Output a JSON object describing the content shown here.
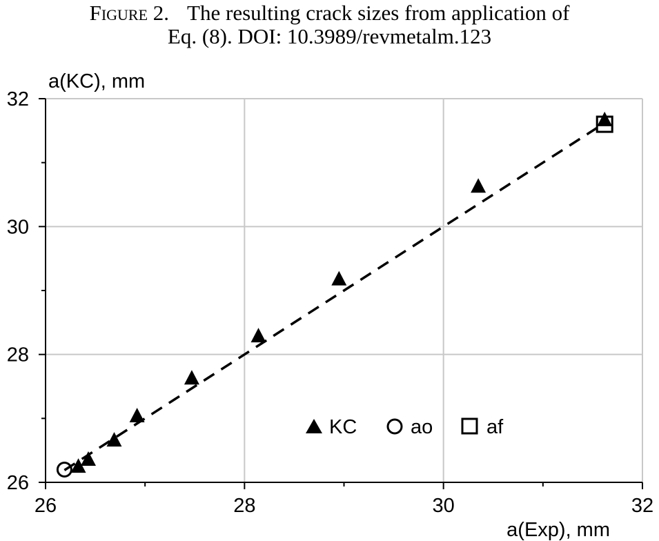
{
  "caption": {
    "figure_label": "Figure 2.",
    "line1": "The resulting crack sizes from application of",
    "line2": "Eq. (8). DOI: 10.3989/revmetalm.123"
  },
  "chart_data": {
    "type": "scatter",
    "title": "",
    "xlabel": "a(Exp), mm",
    "ylabel": "a(KC), mm",
    "xlim": [
      26,
      32
    ],
    "ylim": [
      26,
      32
    ],
    "xticks": [
      26,
      28,
      30,
      32
    ],
    "yticks": [
      26,
      28,
      30,
      32
    ],
    "grid": true,
    "legend_position": "lower-right inside",
    "series": [
      {
        "name": "KC",
        "marker": "filled-triangle",
        "color": "#000000",
        "x": [
          26.33,
          26.43,
          26.69,
          26.92,
          27.47,
          28.14,
          28.95,
          30.35,
          31.62
        ],
        "y": [
          26.24,
          26.35,
          26.65,
          27.03,
          27.62,
          28.28,
          29.17,
          30.62,
          31.66
        ]
      },
      {
        "name": "ao",
        "marker": "open-circle",
        "color": "#000000",
        "x": [
          26.19
        ],
        "y": [
          26.2
        ]
      },
      {
        "name": "af",
        "marker": "open-square",
        "color": "#000000",
        "x": [
          31.62
        ],
        "y": [
          31.6
        ]
      }
    ],
    "reference_line": {
      "style": "dashed",
      "color": "#000000",
      "x": [
        26.19,
        31.62
      ],
      "y": [
        26.19,
        31.62
      ]
    }
  }
}
